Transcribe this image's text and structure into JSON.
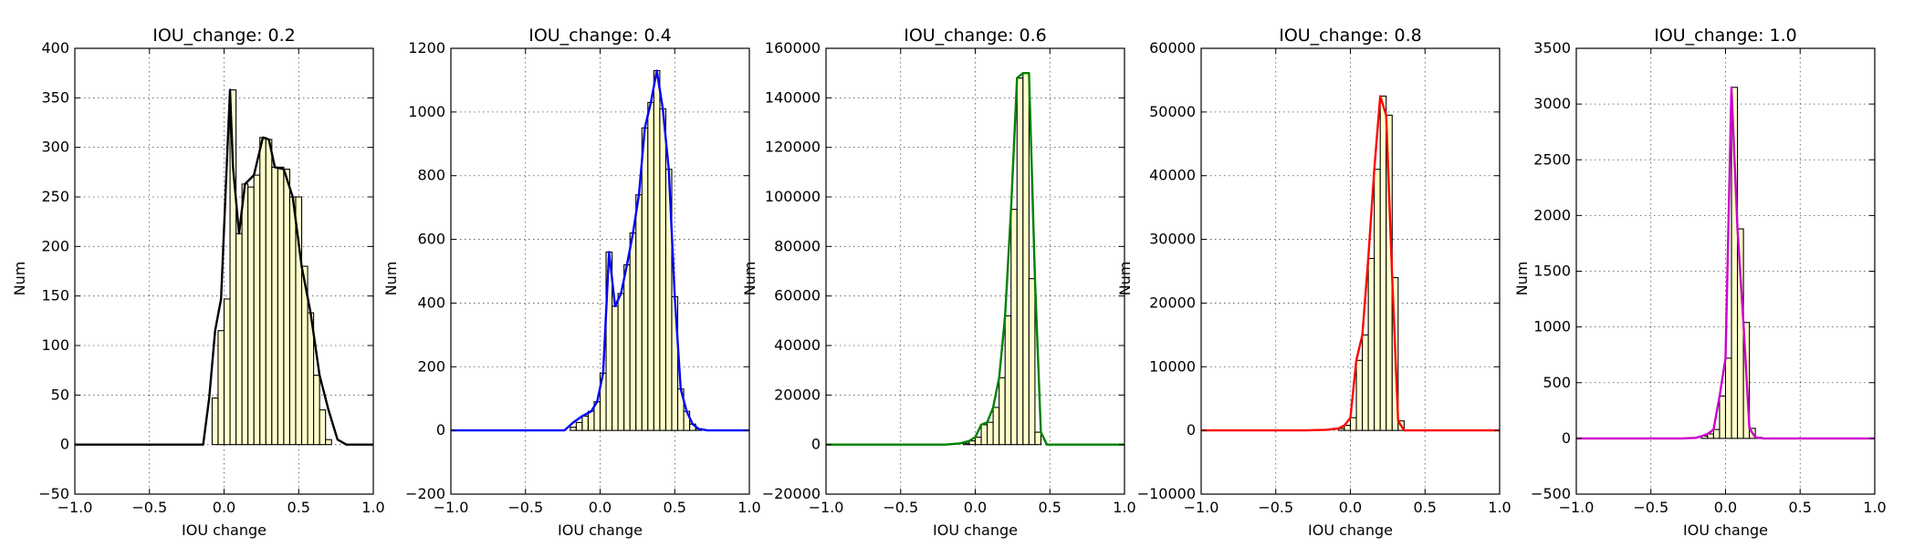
{
  "chart_data": [
    {
      "type": "bar",
      "title": "IOU_change: 0.2",
      "xlabel": "IOU change",
      "ylabel": "Num",
      "xlim": [
        -1.0,
        1.0
      ],
      "ylim": [
        -50,
        400
      ],
      "xticks": [
        -1.0,
        -0.5,
        0.0,
        0.5,
        1.0
      ],
      "xtick_labels": [
        "−1.0",
        "−0.5",
        "0.0",
        "0.5",
        "1.0"
      ],
      "yticks": [
        -50,
        0,
        50,
        100,
        150,
        200,
        250,
        300,
        350,
        400
      ],
      "ytick_labels": [
        "−50",
        "0",
        "50",
        "100",
        "150",
        "200",
        "250",
        "300",
        "350",
        "400"
      ],
      "grid": true,
      "bar_color": "#ffffcc",
      "line_color": "#000000",
      "bin_width": 0.04,
      "bins_x": [
        -0.12,
        -0.08,
        -0.04,
        0.0,
        0.04,
        0.08,
        0.12,
        0.16,
        0.2,
        0.24,
        0.28,
        0.32,
        0.36,
        0.4,
        0.44,
        0.48,
        0.52,
        0.56,
        0.6,
        0.64,
        0.68,
        0.72,
        0.76,
        0.8
      ],
      "bins_values": [
        0,
        47,
        115,
        147,
        358,
        213,
        263,
        260,
        272,
        310,
        308,
        280,
        280,
        278,
        250,
        250,
        180,
        133,
        70,
        35,
        5,
        0,
        0,
        0
      ],
      "curve_x": [
        -1.0,
        -0.14,
        -0.1,
        -0.06,
        -0.02,
        0.02,
        0.04,
        0.06,
        0.1,
        0.14,
        0.2,
        0.26,
        0.3,
        0.34,
        0.4,
        0.46,
        0.52,
        0.58,
        0.64,
        0.7,
        0.76,
        0.82,
        1.0
      ],
      "curve_y": [
        0,
        0,
        47,
        115,
        147,
        290,
        358,
        280,
        213,
        263,
        272,
        310,
        308,
        280,
        278,
        250,
        180,
        133,
        70,
        35,
        5,
        0,
        0
      ]
    },
    {
      "type": "bar",
      "title": "IOU_change: 0.4",
      "xlabel": "IOU change",
      "ylabel": "Num",
      "xlim": [
        -1.0,
        1.0
      ],
      "ylim": [
        -200,
        1200
      ],
      "xticks": [
        -1.0,
        -0.5,
        0.0,
        0.5,
        1.0
      ],
      "xtick_labels": [
        "−1.0",
        "−0.5",
        "0.0",
        "0.5",
        "1.0"
      ],
      "yticks": [
        -200,
        0,
        200,
        400,
        600,
        800,
        1000,
        1200
      ],
      "ytick_labels": [
        "−200",
        "0",
        "200",
        "400",
        "600",
        "800",
        "1000",
        "1200"
      ],
      "grid": true,
      "bar_color": "#ffffcc",
      "line_color": "#0000ff",
      "bin_width": 0.04,
      "bins_x": [
        -0.2,
        -0.16,
        -0.12,
        -0.08,
        -0.04,
        0.0,
        0.04,
        0.08,
        0.12,
        0.16,
        0.2,
        0.24,
        0.28,
        0.32,
        0.36,
        0.4,
        0.44,
        0.48,
        0.52,
        0.56,
        0.6,
        0.64,
        0.68,
        0.72
      ],
      "bins_values": [
        10,
        25,
        45,
        60,
        90,
        180,
        560,
        390,
        430,
        520,
        620,
        740,
        950,
        1030,
        1130,
        1010,
        820,
        420,
        130,
        60,
        20,
        5,
        0,
        0
      ],
      "curve_x": [
        -1.0,
        -0.24,
        -0.18,
        -0.12,
        -0.06,
        -0.02,
        0.02,
        0.06,
        0.1,
        0.14,
        0.18,
        0.22,
        0.26,
        0.3,
        0.34,
        0.38,
        0.42,
        0.46,
        0.5,
        0.54,
        0.58,
        0.62,
        0.66,
        0.72,
        1.0
      ],
      "curve_y": [
        0,
        0,
        25,
        45,
        60,
        90,
        180,
        560,
        390,
        430,
        520,
        620,
        740,
        950,
        1030,
        1130,
        1010,
        820,
        420,
        130,
        60,
        20,
        5,
        0,
        0
      ]
    },
    {
      "type": "bar",
      "title": "IOU_change: 0.6",
      "xlabel": "IOU change",
      "ylabel": "Num",
      "xlim": [
        -1.0,
        1.0
      ],
      "ylim": [
        -20000,
        160000
      ],
      "xticks": [
        -1.0,
        -0.5,
        0.0,
        0.5,
        1.0
      ],
      "xtick_labels": [
        "−1.0",
        "−0.5",
        "0.0",
        "0.5",
        "1.0"
      ],
      "yticks": [
        -20000,
        0,
        20000,
        40000,
        60000,
        80000,
        100000,
        120000,
        140000,
        160000
      ],
      "ytick_labels": [
        "−20000",
        "0",
        "20000",
        "40000",
        "60000",
        "80000",
        "100000",
        "120000",
        "140000",
        "160000"
      ],
      "grid": true,
      "bar_color": "#ffffcc",
      "line_color": "#008000",
      "bin_width": 0.04,
      "bins_x": [
        -0.08,
        -0.04,
        0.0,
        0.04,
        0.08,
        0.12,
        0.16,
        0.2,
        0.24,
        0.28,
        0.32,
        0.36,
        0.4,
        0.44,
        0.48,
        0.52
      ],
      "bins_values": [
        500,
        1500,
        3000,
        8000,
        9000,
        15000,
        27000,
        52000,
        95000,
        148000,
        150000,
        67000,
        5000,
        0,
        0,
        0
      ],
      "curve_x": [
        -1.0,
        -0.2,
        -0.1,
        -0.04,
        0.0,
        0.04,
        0.08,
        0.12,
        0.16,
        0.2,
        0.24,
        0.28,
        0.32,
        0.36,
        0.4,
        0.44,
        0.48,
        0.52,
        1.0
      ],
      "curve_y": [
        0,
        0,
        500,
        1500,
        3000,
        8000,
        9000,
        15000,
        27000,
        52000,
        95000,
        148000,
        150000,
        150000,
        67000,
        5000,
        0,
        0,
        0
      ]
    },
    {
      "type": "bar",
      "title": "IOU_change: 0.8",
      "xlabel": "IOU change",
      "ylabel": "Num",
      "xlim": [
        -1.0,
        1.0
      ],
      "ylim": [
        -10000,
        60000
      ],
      "xticks": [
        -1.0,
        -0.5,
        0.0,
        0.5,
        1.0
      ],
      "xtick_labels": [
        "−1.0",
        "−0.5",
        "0.0",
        "0.5",
        "1.0"
      ],
      "yticks": [
        -10000,
        0,
        10000,
        20000,
        30000,
        40000,
        50000,
        60000
      ],
      "ytick_labels": [
        "−10000",
        "0",
        "10000",
        "20000",
        "30000",
        "40000",
        "50000",
        "60000"
      ],
      "grid": true,
      "bar_color": "#ffffcc",
      "line_color": "#ff0000",
      "bin_width": 0.04,
      "bins_x": [
        -0.08,
        -0.04,
        0.0,
        0.04,
        0.08,
        0.12,
        0.16,
        0.2,
        0.24,
        0.28,
        0.32,
        0.36,
        0.4
      ],
      "bins_values": [
        300,
        800,
        2000,
        11000,
        15000,
        27000,
        41000,
        52500,
        49500,
        24000,
        1500,
        0,
        0
      ],
      "curve_x": [
        -1.0,
        -0.3,
        -0.16,
        -0.08,
        -0.04,
        0.0,
        0.04,
        0.08,
        0.12,
        0.16,
        0.2,
        0.24,
        0.28,
        0.32,
        0.36,
        0.4,
        1.0
      ],
      "curve_y": [
        0,
        0,
        100,
        300,
        800,
        2000,
        11000,
        15000,
        27000,
        41000,
        52500,
        49500,
        24000,
        1500,
        0,
        0,
        0
      ]
    },
    {
      "type": "bar",
      "title": "IOU_change: 1.0",
      "xlabel": "IOU change",
      "ylabel": "Num",
      "xlim": [
        -1.0,
        1.0
      ],
      "ylim": [
        -500,
        3500
      ],
      "xticks": [
        -1.0,
        -0.5,
        0.0,
        0.5,
        1.0
      ],
      "xtick_labels": [
        "−1.0",
        "−0.5",
        "0.0",
        "0.5",
        "1.0"
      ],
      "yticks": [
        -500,
        0,
        500,
        1000,
        1500,
        2000,
        2500,
        3000,
        3500
      ],
      "ytick_labels": [
        "−500",
        "0",
        "500",
        "1000",
        "1500",
        "2000",
        "2500",
        "3000",
        "3500"
      ],
      "grid": true,
      "bar_color": "#ffffcc",
      "line_color": "#cc00cc",
      "bin_width": 0.04,
      "bins_x": [
        -0.16,
        -0.12,
        -0.08,
        -0.04,
        0.0,
        0.04,
        0.08,
        0.12,
        0.16,
        0.2,
        0.24
      ],
      "bins_values": [
        20,
        40,
        80,
        380,
        720,
        3150,
        1880,
        1040,
        90,
        10,
        0
      ],
      "curve_x": [
        -1.0,
        -0.3,
        -0.2,
        -0.16,
        -0.12,
        -0.08,
        -0.04,
        0.0,
        0.04,
        0.08,
        0.12,
        0.16,
        0.2,
        0.26,
        1.0
      ],
      "curve_y": [
        0,
        0,
        5,
        20,
        40,
        80,
        380,
        720,
        3150,
        1880,
        1040,
        90,
        10,
        0,
        0
      ]
    }
  ]
}
